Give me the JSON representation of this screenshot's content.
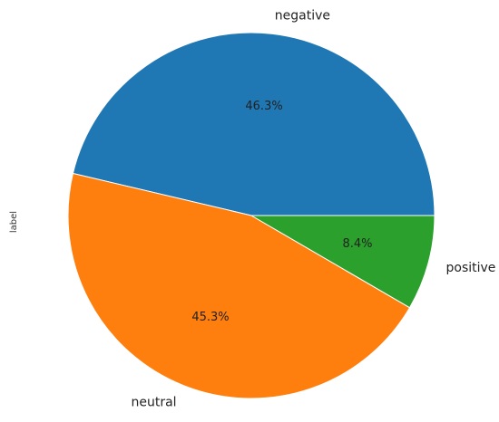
{
  "chart_data": {
    "type": "pie",
    "title": "",
    "ylabel": "label",
    "categories": [
      "negative",
      "neutral",
      "positive"
    ],
    "values": [
      46.3,
      45.3,
      8.4
    ],
    "labels_pct": [
      "46.3%",
      "45.3%",
      "8.4%"
    ],
    "colors": [
      "#1f77b4",
      "#ff7f0e",
      "#2ca02c"
    ],
    "startangle_deg": 0,
    "direction": "counterclockwise",
    "legend": "none"
  }
}
